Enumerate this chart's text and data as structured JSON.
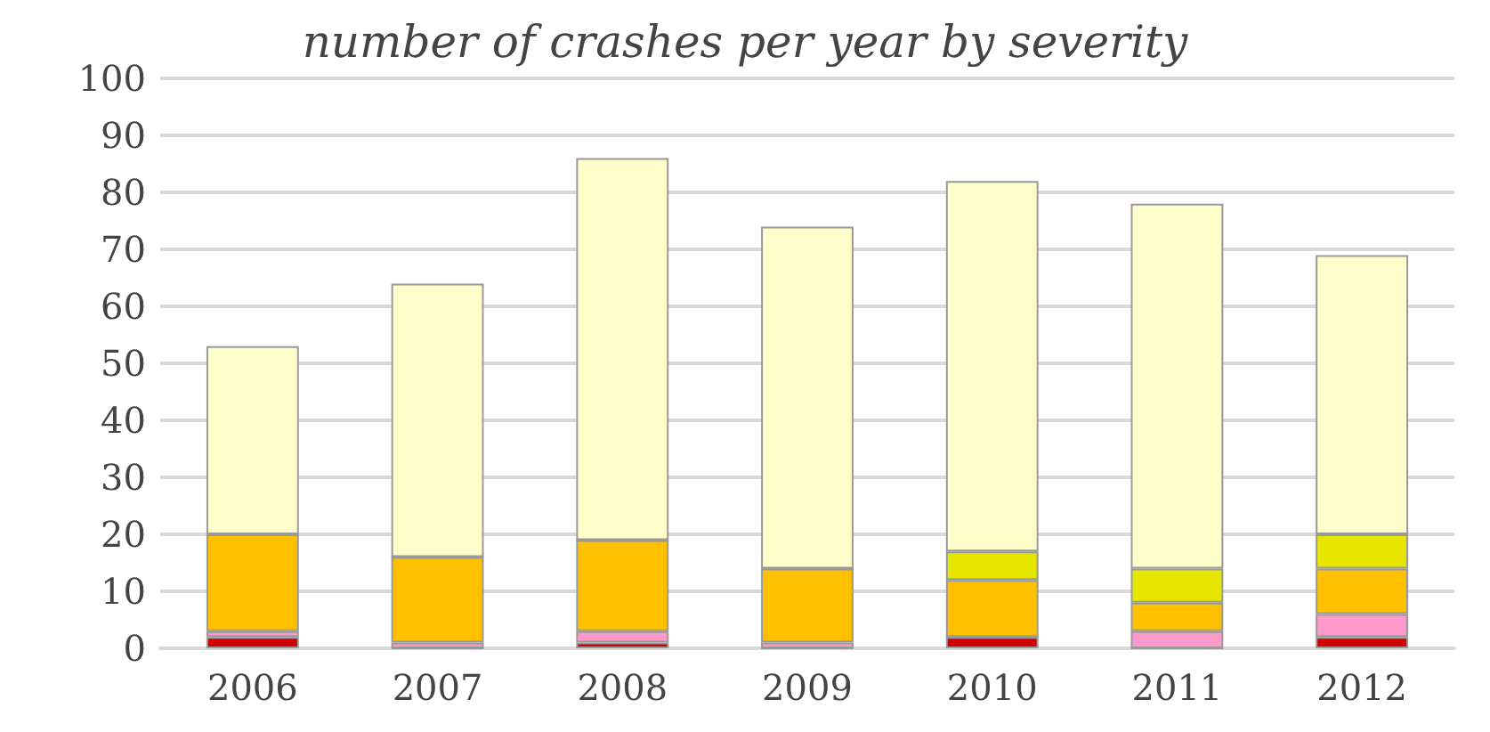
{
  "chart_data": {
    "type": "bar",
    "title": "number of crashes per year by severity",
    "categories": [
      "2006",
      "2007",
      "2008",
      "2009",
      "2010",
      "2011",
      "2012"
    ],
    "stacked": true,
    "series": [
      {
        "color": "#d00000",
        "values": [
          2,
          0,
          1,
          0,
          2,
          0,
          2
        ]
      },
      {
        "color": "#ff99cc",
        "values": [
          1,
          1,
          2,
          1,
          0,
          3,
          4
        ]
      },
      {
        "color": "#ffc000",
        "values": [
          17,
          15,
          16,
          13,
          10,
          5,
          8
        ]
      },
      {
        "color": "#e6e600",
        "values": [
          0,
          0,
          0,
          0,
          5,
          6,
          6
        ]
      },
      {
        "color": "#ffffcc",
        "values": [
          33,
          48,
          67,
          60,
          65,
          64,
          49
        ]
      }
    ],
    "ylim": [
      0,
      100
    ],
    "yticks": [
      0,
      10,
      20,
      30,
      40,
      50,
      60,
      70,
      80,
      90,
      100
    ],
    "grid": "y"
  }
}
